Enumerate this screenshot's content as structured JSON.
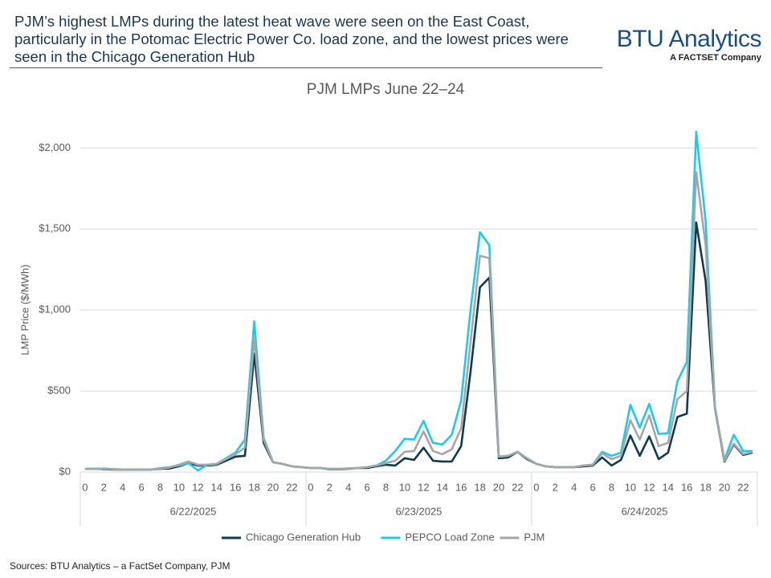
{
  "header": {
    "title": "PJM’s highest LMPs during the latest heat wave were seen on the East Coast, particularly in the Potomac Electric Power Co. load zone, and the lowest prices were seen in the Chicago Generation Hub",
    "logo": "BTU Analytics",
    "logo_sub": "A FACTSET Company"
  },
  "source": "Sources: BTU Analytics – a FactSet Company, PJM",
  "chart_data": {
    "type": "line",
    "title": "PJM LMPs June 22–24",
    "y_label": "LMP Price ($/MWh)",
    "categories": [
      0,
      null,
      2,
      null,
      4,
      null,
      6,
      null,
      8,
      null,
      10,
      null,
      12,
      null,
      14,
      null,
      16,
      null,
      18,
      null,
      20,
      null,
      22,
      null,
      0,
      null,
      2,
      null,
      4,
      null,
      6,
      null,
      8,
      null,
      10,
      null,
      12,
      null,
      14,
      null,
      16,
      null,
      18,
      null,
      20,
      null,
      22,
      null,
      0,
      null,
      2,
      null,
      4,
      null,
      6,
      null,
      8,
      null,
      10,
      null,
      12,
      null,
      14,
      null,
      16,
      null,
      18,
      null,
      20,
      null,
      22,
      null
    ],
    "x_groups": [
      "6/22/2025",
      "6/23/2025",
      "6/24/2025"
    ],
    "ylim": [
      0,
      2200
    ],
    "yticks": [
      {
        "value": 0,
        "label": "$0"
      },
      {
        "value": 500,
        "label": "$500"
      },
      {
        "value": 1000,
        "label": "$1,000"
      },
      {
        "value": 1500,
        "label": "$1,500"
      },
      {
        "value": 2000,
        "label": "$2,000"
      }
    ],
    "grid": true,
    "legend": "bottom",
    "series": [
      {
        "name": "Chicago Generation Hub",
        "color": "#0d3b4f",
        "values": [
          20,
          20,
          18,
          15,
          15,
          15,
          15,
          15,
          20,
          22,
          35,
          55,
          40,
          40,
          45,
          70,
          95,
          100,
          730,
          180,
          60,
          50,
          35,
          30,
          25,
          25,
          18,
          18,
          20,
          25,
          25,
          35,
          45,
          40,
          85,
          75,
          150,
          70,
          65,
          65,
          160,
          620,
          1140,
          1200,
          85,
          90,
          125,
          80,
          50,
          35,
          30,
          30,
          30,
          35,
          40,
          90,
          40,
          75,
          225,
          100,
          220,
          80,
          120,
          340,
          360,
          1540,
          1180,
          390,
          65,
          170,
          105,
          120
        ]
      },
      {
        "name": "PEPCO Load Zone",
        "color": "#1ec8f0",
        "values": [
          20,
          20,
          22,
          18,
          16,
          15,
          15,
          15,
          25,
          30,
          40,
          55,
          10,
          45,
          50,
          85,
          120,
          200,
          930,
          210,
          60,
          50,
          35,
          30,
          25,
          25,
          20,
          20,
          22,
          25,
          30,
          40,
          70,
          130,
          205,
          200,
          315,
          180,
          170,
          230,
          440,
          1000,
          1480,
          1400,
          95,
          100,
          125,
          85,
          50,
          35,
          30,
          30,
          30,
          40,
          45,
          125,
          100,
          120,
          415,
          275,
          420,
          235,
          240,
          560,
          680,
          2100,
          1550,
          400,
          75,
          230,
          130,
          130
        ]
      },
      {
        "name": "PJM",
        "color": "#a6a6a6",
        "values": [
          20,
          20,
          20,
          17,
          16,
          15,
          15,
          15,
          22,
          28,
          45,
          65,
          45,
          45,
          50,
          80,
          110,
          150,
          830,
          200,
          60,
          50,
          35,
          30,
          25,
          25,
          20,
          20,
          22,
          25,
          30,
          40,
          55,
          70,
          125,
          130,
          250,
          130,
          110,
          140,
          270,
          800,
          1335,
          1320,
          95,
          100,
          125,
          85,
          50,
          35,
          30,
          30,
          30,
          40,
          45,
          115,
          80,
          100,
          320,
          200,
          350,
          160,
          180,
          450,
          500,
          1850,
          1400,
          395,
          70,
          175,
          110,
          125
        ]
      }
    ]
  }
}
